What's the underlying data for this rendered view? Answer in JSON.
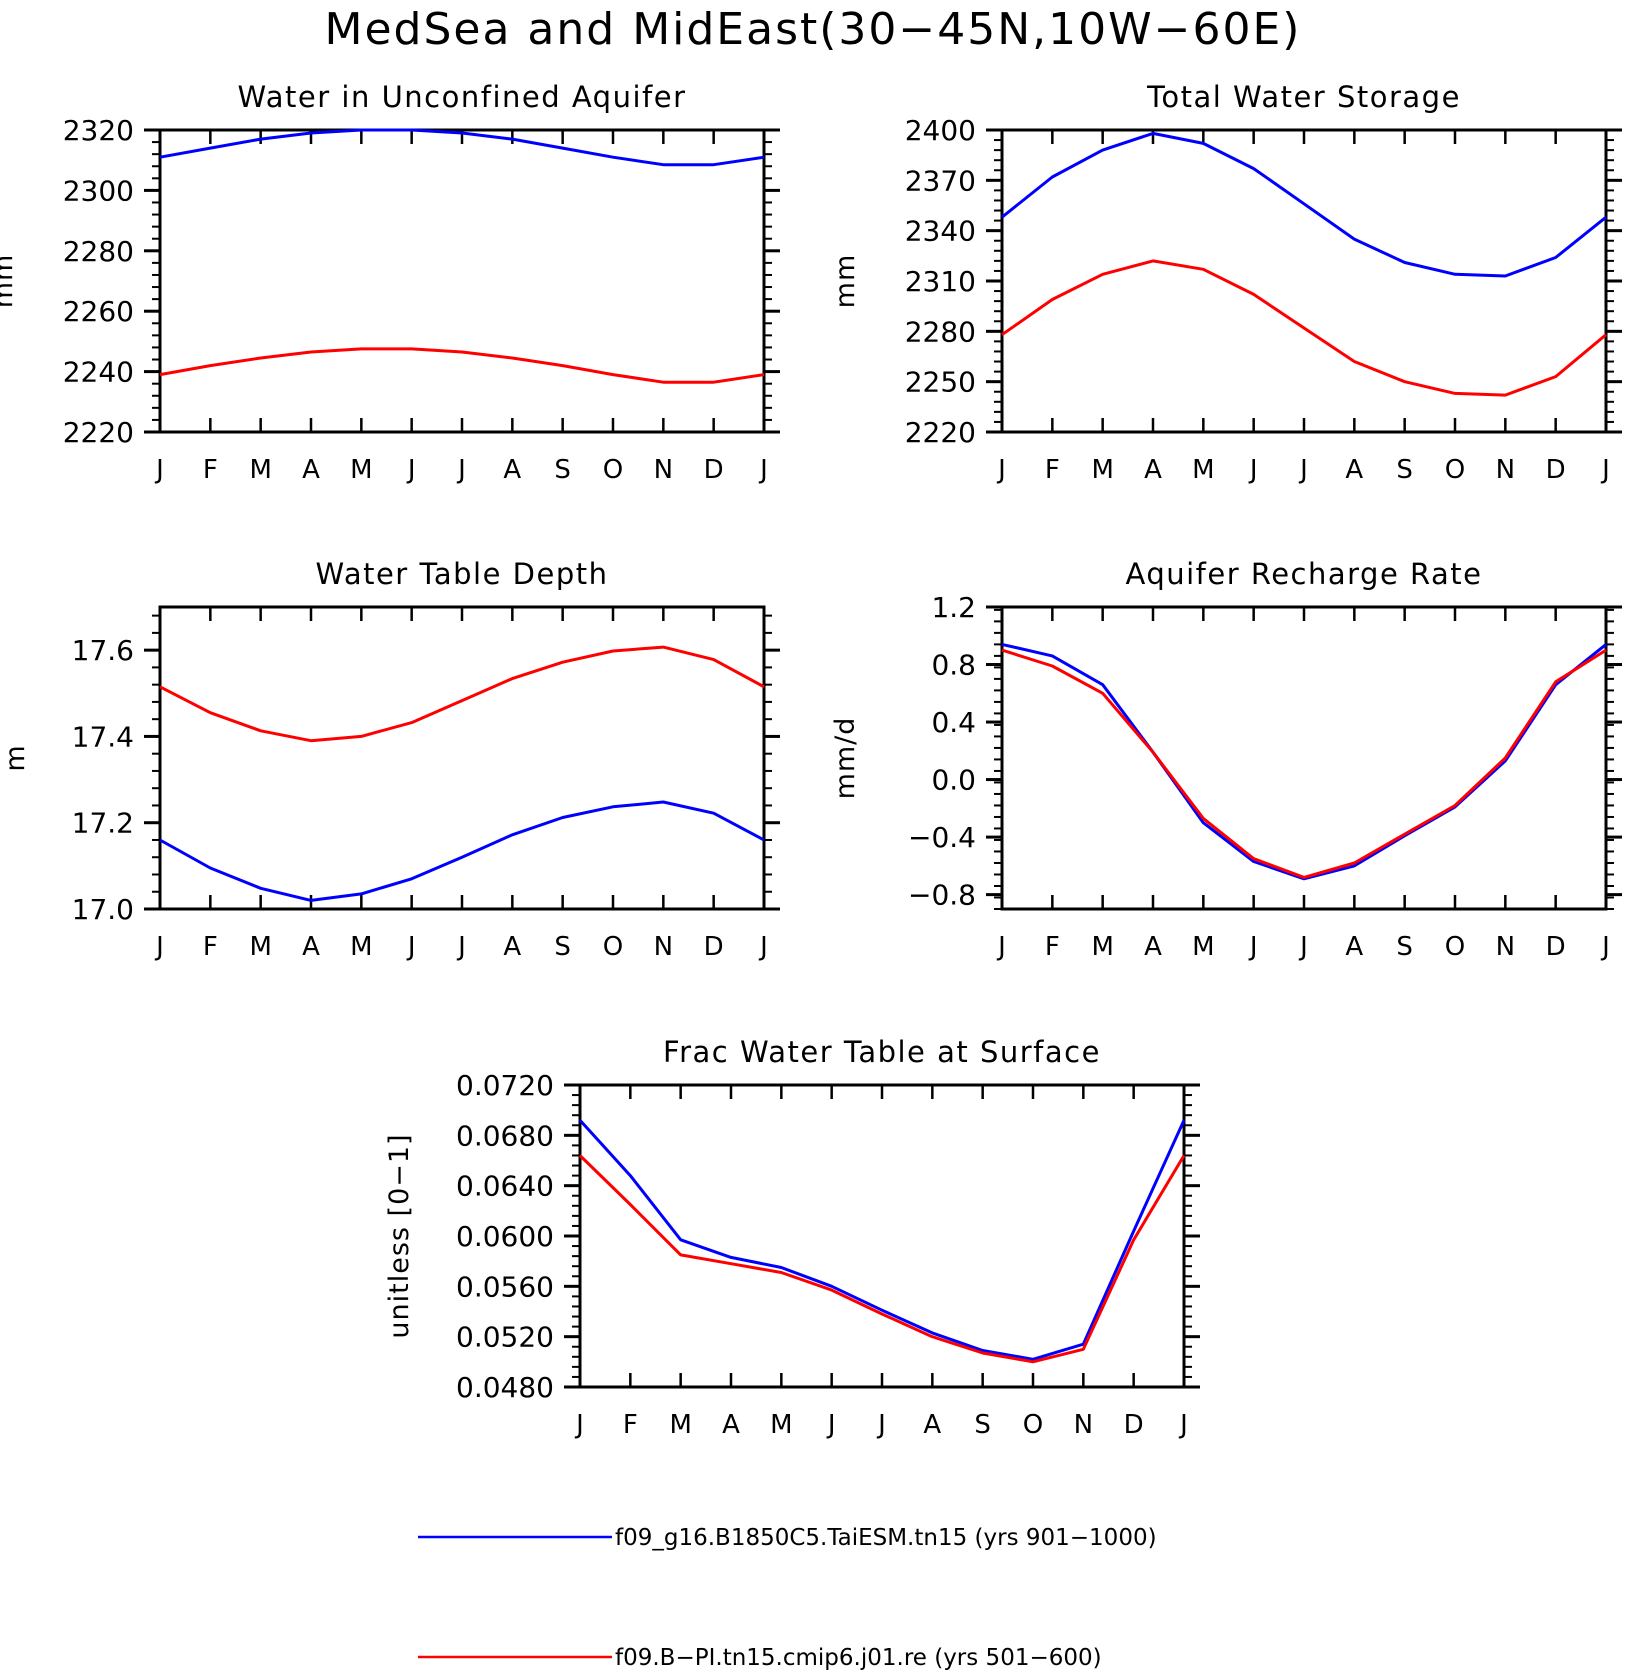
{
  "title": "MedSea and MidEast(30−45N,10W−60E)",
  "months": [
    "J",
    "F",
    "M",
    "A",
    "M",
    "J",
    "J",
    "A",
    "S",
    "O",
    "N",
    "D",
    "J"
  ],
  "colors": {
    "series1": "#0000ff",
    "series2": "#ff0000"
  },
  "legend": [
    {
      "label": "f09_g16.B1850C5.TaiESM.tn15 (yrs 901−1000)",
      "color": "#0000ff"
    },
    {
      "label": "f09.B−PI.tn15.cmip6.j01.re (yrs 501−600)",
      "color": "#ff0000"
    }
  ],
  "chart_data": [
    {
      "type": "line",
      "title": "Water in Unconfined Aquifer",
      "ylabel": "mm",
      "ylim": [
        2220,
        2320
      ],
      "yticks": [
        "2220",
        "2240",
        "2260",
        "2280",
        "2300",
        "2320"
      ],
      "x": [
        "J",
        "F",
        "M",
        "A",
        "M",
        "J",
        "J",
        "A",
        "S",
        "O",
        "N",
        "D",
        "J"
      ],
      "series": [
        {
          "name": "f09_g16.B1850C5.TaiESM.tn15 (yrs 901−1000)",
          "color": "#0000ff",
          "values": [
            2311,
            2314,
            2317,
            2319,
            2320,
            2320,
            2319,
            2317,
            2314,
            2311,
            2308.5,
            2308.5,
            2311
          ]
        },
        {
          "name": "f09.B−PI.tn15.cmip6.j01.re (yrs 501−600)",
          "color": "#ff0000",
          "values": [
            2239,
            2242,
            2244.5,
            2246.5,
            2247.5,
            2247.5,
            2246.5,
            2244.5,
            2242,
            2239,
            2236.5,
            2236.5,
            2239
          ]
        }
      ]
    },
    {
      "type": "line",
      "title": "Total Water Storage",
      "ylabel": "mm",
      "ylim": [
        2220,
        2400
      ],
      "yticks": [
        "2220",
        "2250",
        "2280",
        "2310",
        "2340",
        "2370",
        "2400"
      ],
      "x": [
        "J",
        "F",
        "M",
        "A",
        "M",
        "J",
        "J",
        "A",
        "S",
        "O",
        "N",
        "D",
        "J"
      ],
      "series": [
        {
          "name": "f09_g16.B1850C5.TaiESM.tn15 (yrs 901−1000)",
          "color": "#0000ff",
          "values": [
            2348,
            2372,
            2388,
            2398,
            2392,
            2377,
            2356,
            2335,
            2321,
            2314,
            2313,
            2324,
            2348
          ]
        },
        {
          "name": "f09.B−PI.tn15.cmip6.j01.re (yrs 501−600)",
          "color": "#ff0000",
          "values": [
            2278,
            2299,
            2314,
            2322,
            2317,
            2302,
            2282,
            2262,
            2250,
            2243,
            2242,
            2253,
            2278
          ]
        }
      ]
    },
    {
      "type": "line",
      "title": "Water Table Depth",
      "ylabel": "m",
      "ylim": [
        17.0,
        17.7
      ],
      "yticks": [
        "17.0",
        "17.2",
        "17.4",
        "17.6"
      ],
      "x": [
        "J",
        "F",
        "M",
        "A",
        "M",
        "J",
        "J",
        "A",
        "S",
        "O",
        "N",
        "D",
        "J"
      ],
      "series": [
        {
          "name": "f09_g16.B1850C5.TaiESM.tn15 (yrs 901−1000)",
          "color": "#0000ff",
          "values": [
            17.16,
            17.095,
            17.048,
            17.02,
            17.035,
            17.07,
            17.12,
            17.172,
            17.212,
            17.237,
            17.248,
            17.222,
            17.16
          ]
        },
        {
          "name": "f09.B−PI.tn15.cmip6.j01.re (yrs 501−600)",
          "color": "#ff0000",
          "values": [
            17.515,
            17.455,
            17.413,
            17.39,
            17.4,
            17.432,
            17.483,
            17.534,
            17.572,
            17.598,
            17.607,
            17.578,
            17.515
          ]
        }
      ]
    },
    {
      "type": "line",
      "title": "Aquifer Recharge Rate",
      "ylabel": "mm/d",
      "ylim": [
        -0.9,
        1.2
      ],
      "yticks": [
        "−0.8",
        "−0.4",
        "0.0",
        "0.4",
        "0.8",
        "1.2"
      ],
      "x": [
        "J",
        "F",
        "M",
        "A",
        "M",
        "J",
        "J",
        "A",
        "S",
        "O",
        "N",
        "D",
        "J"
      ],
      "series": [
        {
          "name": "f09_g16.B1850C5.TaiESM.tn15 (yrs 901−1000)",
          "color": "#0000ff",
          "values": [
            0.94,
            0.86,
            0.66,
            0.19,
            -0.3,
            -0.57,
            -0.69,
            -0.6,
            -0.39,
            -0.19,
            0.13,
            0.66,
            0.94
          ]
        },
        {
          "name": "f09.B−PI.tn15.cmip6.j01.re (yrs 501−600)",
          "color": "#ff0000",
          "values": [
            0.9,
            0.79,
            0.6,
            0.19,
            -0.27,
            -0.55,
            -0.68,
            -0.58,
            -0.38,
            -0.18,
            0.15,
            0.68,
            0.9
          ]
        }
      ]
    },
    {
      "type": "line",
      "title": "Frac Water Table at Surface",
      "ylabel": "unitless [0−1]",
      "ylim": [
        0.048,
        0.072
      ],
      "yticks": [
        "0.0480",
        "0.0520",
        "0.0560",
        "0.0600",
        "0.0640",
        "0.0680",
        "0.0720"
      ],
      "x": [
        "J",
        "F",
        "M",
        "A",
        "M",
        "J",
        "J",
        "A",
        "S",
        "O",
        "N",
        "D",
        "J"
      ],
      "series": [
        {
          "name": "f09_g16.B1850C5.TaiESM.tn15 (yrs 901−1000)",
          "color": "#0000ff",
          "values": [
            0.0692,
            0.0648,
            0.0597,
            0.0583,
            0.0575,
            0.056,
            0.0541,
            0.0523,
            0.0509,
            0.0502,
            0.0514,
            0.0604,
            0.0692
          ]
        },
        {
          "name": "f09.B−PI.tn15.cmip6.j01.re (yrs 501−600)",
          "color": "#ff0000",
          "values": [
            0.0664,
            0.0625,
            0.0585,
            0.0578,
            0.0571,
            0.0557,
            0.0538,
            0.052,
            0.0507,
            0.05,
            0.051,
            0.0597,
            0.0664
          ]
        }
      ]
    }
  ]
}
